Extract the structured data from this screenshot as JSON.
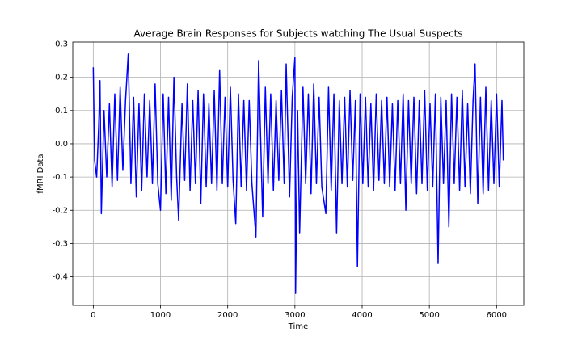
{
  "chart_data": {
    "type": "line",
    "title": "Average Brain Responses for Subjects watching The Usual Suspects",
    "x_label": "Time",
    "y_label": "fMRI Data",
    "xlim": [
      -305,
      6405
    ],
    "ylim": [
      -0.486,
      0.306
    ],
    "xticks": [
      0,
      1000,
      2000,
      3000,
      4000,
      5000,
      6000
    ],
    "yticks": [
      -0.4,
      -0.3,
      -0.2,
      -0.1,
      {
        "value": 0,
        "label": "0.0"
      },
      0.1,
      0.2,
      0.3
    ],
    "grid": true,
    "x": [
      0,
      20,
      50,
      80,
      100,
      120,
      160,
      200,
      240,
      280,
      320,
      360,
      400,
      440,
      480,
      520,
      560,
      600,
      640,
      680,
      720,
      760,
      800,
      840,
      880,
      920,
      960,
      1000,
      1040,
      1080,
      1120,
      1160,
      1200,
      1240,
      1270,
      1320,
      1360,
      1400,
      1440,
      1480,
      1520,
      1560,
      1600,
      1640,
      1680,
      1720,
      1760,
      1800,
      1840,
      1880,
      1920,
      1960,
      2000,
      2040,
      2080,
      2120,
      2160,
      2200,
      2240,
      2280,
      2320,
      2360,
      2420,
      2460,
      2520,
      2560,
      2600,
      2640,
      2680,
      2720,
      2760,
      2800,
      2840,
      2870,
      2920,
      2960,
      3000,
      3010,
      3040,
      3070,
      3120,
      3160,
      3200,
      3240,
      3280,
      3320,
      3360,
      3400,
      3460,
      3500,
      3540,
      3580,
      3620,
      3660,
      3700,
      3740,
      3780,
      3820,
      3860,
      3900,
      3930,
      3970,
      4010,
      4050,
      4090,
      4130,
      4170,
      4210,
      4250,
      4290,
      4330,
      4370,
      4410,
      4450,
      4490,
      4530,
      4570,
      4610,
      4650,
      4690,
      4730,
      4770,
      4810,
      4850,
      4890,
      4930,
      4970,
      5010,
      5050,
      5090,
      5130,
      5170,
      5210,
      5250,
      5290,
      5330,
      5370,
      5410,
      5450,
      5490,
      5530,
      5570,
      5610,
      5650,
      5680,
      5720,
      5760,
      5800,
      5840,
      5880,
      5920,
      5960,
      6000,
      6040,
      6080,
      6100
    ],
    "series": [
      {
        "color": "#0000ff",
        "values": [
          0.23,
          -0.05,
          -0.1,
          0.05,
          0.19,
          -0.21,
          0.1,
          -0.1,
          0.12,
          -0.13,
          0.15,
          -0.11,
          0.17,
          -0.08,
          0.13,
          0.27,
          -0.12,
          0.14,
          -0.16,
          0.12,
          -0.14,
          0.15,
          -0.1,
          0.13,
          -0.12,
          0.18,
          -0.12,
          -0.2,
          0.15,
          -0.15,
          0.14,
          -0.17,
          0.2,
          -0.1,
          -0.23,
          0.12,
          -0.11,
          0.18,
          -0.14,
          0.13,
          -0.12,
          0.16,
          -0.18,
          0.15,
          -0.13,
          0.12,
          -0.12,
          0.16,
          -0.14,
          0.22,
          -0.12,
          0.14,
          -0.13,
          0.17,
          -0.11,
          -0.24,
          0.15,
          -0.13,
          0.13,
          -0.14,
          0.13,
          -0.12,
          -0.28,
          0.25,
          -0.22,
          0.17,
          -0.12,
          0.15,
          -0.14,
          0.13,
          -0.11,
          0.16,
          -0.12,
          0.24,
          -0.16,
          0.14,
          0.26,
          -0.45,
          0.1,
          -0.27,
          0.17,
          -0.12,
          0.15,
          -0.15,
          0.18,
          -0.12,
          0.14,
          -0.13,
          -0.21,
          0.17,
          -0.14,
          0.15,
          -0.27,
          0.13,
          -0.12,
          0.14,
          -0.13,
          0.16,
          -0.11,
          0.13,
          -0.37,
          0.15,
          -0.12,
          0.14,
          -0.13,
          0.12,
          -0.14,
          0.15,
          -0.11,
          0.13,
          -0.12,
          0.14,
          -0.13,
          0.12,
          -0.14,
          0.13,
          -0.12,
          0.15,
          -0.2,
          0.13,
          -0.12,
          0.14,
          -0.15,
          0.13,
          -0.12,
          0.16,
          -0.14,
          0.12,
          -0.13,
          0.15,
          -0.36,
          0.14,
          -0.12,
          0.13,
          -0.25,
          0.15,
          -0.12,
          0.14,
          -0.14,
          0.16,
          -0.13,
          0.12,
          -0.15,
          0.13,
          0.24,
          -0.18,
          0.14,
          -0.15,
          0.17,
          -0.14,
          0.13,
          -0.12,
          0.15,
          -0.13,
          0.13,
          -0.05
        ]
      }
    ]
  }
}
